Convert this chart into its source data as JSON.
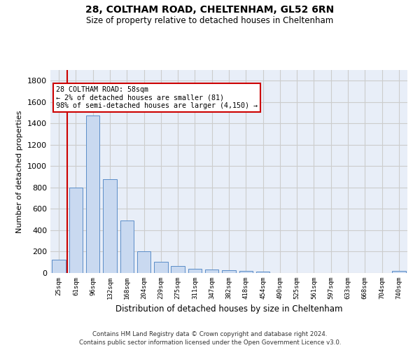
{
  "title1": "28, COLTHAM ROAD, CHELTENHAM, GL52 6RN",
  "title2": "Size of property relative to detached houses in Cheltenham",
  "xlabel": "Distribution of detached houses by size in Cheltenham",
  "ylabel": "Number of detached properties",
  "footer1": "Contains HM Land Registry data © Crown copyright and database right 2024.",
  "footer2": "Contains public sector information licensed under the Open Government Licence v3.0.",
  "annotation_title": "28 COLTHAM ROAD: 58sqm",
  "annotation_line1": "← 2% of detached houses are smaller (81)",
  "annotation_line2": "98% of semi-detached houses are larger (4,150) →",
  "bar_color": "#c9d9f0",
  "bar_edge_color": "#5b8dc8",
  "redline_color": "#cc0000",
  "annotation_border_color": "#cc0000",
  "categories": [
    "25sqm",
    "61sqm",
    "96sqm",
    "132sqm",
    "168sqm",
    "204sqm",
    "239sqm",
    "275sqm",
    "311sqm",
    "347sqm",
    "382sqm",
    "418sqm",
    "454sqm",
    "490sqm",
    "525sqm",
    "561sqm",
    "597sqm",
    "633sqm",
    "668sqm",
    "704sqm",
    "740sqm"
  ],
  "values": [
    125,
    800,
    1475,
    880,
    490,
    205,
    105,
    65,
    40,
    35,
    25,
    22,
    10,
    0,
    0,
    0,
    0,
    0,
    0,
    0,
    20
  ],
  "ylim": [
    0,
    1900
  ],
  "yticks": [
    0,
    200,
    400,
    600,
    800,
    1000,
    1200,
    1400,
    1600,
    1800
  ],
  "redline_x": 0.5,
  "grid_color": "#cccccc",
  "bg_color": "#e8eef8"
}
